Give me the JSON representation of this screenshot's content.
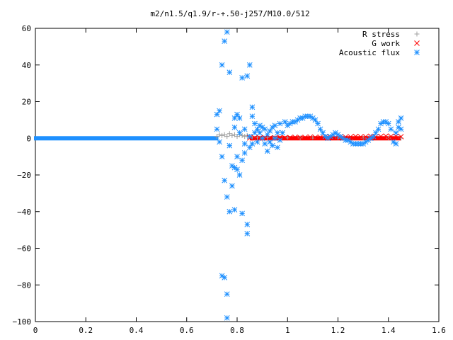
{
  "chart_data": {
    "type": "scatter",
    "title": "m2/n1.5/q1.9/r-+.50-j257/M10.0/512",
    "xlabel": "",
    "ylabel": "",
    "xlim": [
      0,
      1.6
    ],
    "ylim": [
      -100,
      60
    ],
    "x_ticks": [
      "0",
      "0.2",
      "0.4",
      "0.6",
      "0.8",
      "1",
      "1.2",
      "1.4",
      "1.6"
    ],
    "y_ticks": [
      "60",
      "40",
      "20",
      "0",
      "−20",
      "−40",
      "−60",
      "−80",
      "−100"
    ],
    "legend_position": "top-right",
    "grid": false,
    "series": [
      {
        "name": "R stress",
        "marker": "plus",
        "color": "#a0a0a0",
        "points": [
          [
            0.72,
            1
          ],
          [
            0.73,
            2
          ],
          [
            0.74,
            1.5
          ],
          [
            0.75,
            2
          ],
          [
            0.76,
            1
          ],
          [
            0.77,
            2.5
          ],
          [
            0.78,
            1.5
          ],
          [
            0.79,
            2
          ],
          [
            0.8,
            1
          ],
          [
            0.81,
            2
          ],
          [
            0.82,
            1.5
          ],
          [
            0.83,
            1
          ],
          [
            0.84,
            1.5
          ],
          [
            0.85,
            1
          ],
          [
            0.86,
            0.8
          ],
          [
            0.88,
            0.6
          ],
          [
            0.9,
            0.5
          ],
          [
            0.92,
            0.4
          ],
          [
            0.95,
            0.3
          ],
          [
            1.0,
            0.2
          ],
          [
            1.05,
            0.2
          ],
          [
            1.1,
            0.1
          ],
          [
            1.2,
            0.1
          ],
          [
            1.3,
            0.1
          ],
          [
            1.4,
            0.1
          ],
          [
            1.45,
            0.1
          ]
        ]
      },
      {
        "name": "G work",
        "marker": "cross",
        "color": "#ff0000",
        "points": [
          [
            0.85,
            0.2
          ],
          [
            0.87,
            0.3
          ],
          [
            0.89,
            0.2
          ],
          [
            0.91,
            0.4
          ],
          [
            0.93,
            0.2
          ],
          [
            0.95,
            0.3
          ],
          [
            0.97,
            0.5
          ],
          [
            0.99,
            0.3
          ],
          [
            1.01,
            0.4
          ],
          [
            1.03,
            0.6
          ],
          [
            1.05,
            0.4
          ],
          [
            1.07,
            0.5
          ],
          [
            1.09,
            0.7
          ],
          [
            1.11,
            0.5
          ],
          [
            1.13,
            0.6
          ],
          [
            1.15,
            0.8
          ],
          [
            1.17,
            0.6
          ],
          [
            1.19,
            0.7
          ],
          [
            1.21,
            0.9
          ],
          [
            1.23,
            0.7
          ],
          [
            1.25,
            0.8
          ],
          [
            1.27,
            1.0
          ],
          [
            1.29,
            0.8
          ],
          [
            1.31,
            0.9
          ],
          [
            1.33,
            1.1
          ],
          [
            1.35,
            0.9
          ],
          [
            1.37,
            1.0
          ],
          [
            1.39,
            1.2
          ],
          [
            1.41,
            1.0
          ],
          [
            1.43,
            1.1
          ],
          [
            1.45,
            0.9
          ]
        ]
      },
      {
        "name": "Acoustic flux",
        "marker": "star",
        "color": "#1e90ff",
        "points": [
          [
            0.72,
            13
          ],
          [
            0.72,
            5
          ],
          [
            0.73,
            -2
          ],
          [
            0.73,
            15
          ],
          [
            0.74,
            40
          ],
          [
            0.74,
            -10
          ],
          [
            0.74,
            -75
          ],
          [
            0.75,
            -23
          ],
          [
            0.75,
            -76
          ],
          [
            0.75,
            53
          ],
          [
            0.76,
            58
          ],
          [
            0.76,
            -32
          ],
          [
            0.76,
            -85
          ],
          [
            0.76,
            -98
          ],
          [
            0.77,
            36
          ],
          [
            0.77,
            -4
          ],
          [
            0.77,
            -40
          ],
          [
            0.78,
            -15
          ],
          [
            0.78,
            -26
          ],
          [
            0.79,
            -16
          ],
          [
            0.79,
            -39
          ],
          [
            0.79,
            6
          ],
          [
            0.79,
            11
          ],
          [
            0.8,
            -17
          ],
          [
            0.8,
            -10
          ],
          [
            0.8,
            13
          ],
          [
            0.81,
            11
          ],
          [
            0.81,
            3
          ],
          [
            0.81,
            -20
          ],
          [
            0.82,
            33
          ],
          [
            0.82,
            -12
          ],
          [
            0.82,
            -41
          ],
          [
            0.83,
            -8
          ],
          [
            0.83,
            5
          ],
          [
            0.83,
            -3
          ],
          [
            0.84,
            -47
          ],
          [
            0.84,
            34
          ],
          [
            0.84,
            -52
          ],
          [
            0.85,
            40
          ],
          [
            0.85,
            -5
          ],
          [
            0.85,
            1
          ],
          [
            0.86,
            17
          ],
          [
            0.86,
            12
          ],
          [
            0.86,
            -3
          ],
          [
            0.87,
            8
          ],
          [
            0.87,
            3
          ],
          [
            0.88,
            5
          ],
          [
            0.88,
            -2
          ],
          [
            0.89,
            3
          ],
          [
            0.89,
            7
          ],
          [
            0.9,
            0
          ],
          [
            0.9,
            6
          ],
          [
            0.91,
            -3
          ],
          [
            0.91,
            5
          ],
          [
            0.92,
            2
          ],
          [
            0.92,
            -7
          ],
          [
            0.93,
            -2
          ],
          [
            0.93,
            4
          ],
          [
            0.94,
            6
          ],
          [
            0.94,
            -4
          ],
          [
            0.95,
            7
          ],
          [
            0.95,
            0
          ],
          [
            0.96,
            -5
          ],
          [
            0.96,
            3
          ],
          [
            0.97,
            8
          ],
          [
            0.97,
            -1
          ],
          [
            0.98,
            3
          ],
          [
            0.99,
            9
          ],
          [
            1.0,
            7
          ],
          [
            1.01,
            8
          ],
          [
            1.02,
            9
          ],
          [
            1.03,
            9
          ],
          [
            1.04,
            10
          ],
          [
            1.05,
            11
          ],
          [
            1.06,
            11
          ],
          [
            1.07,
            12
          ],
          [
            1.08,
            12
          ],
          [
            1.09,
            12
          ],
          [
            1.1,
            11
          ],
          [
            1.11,
            10
          ],
          [
            1.12,
            8
          ],
          [
            1.13,
            5
          ],
          [
            1.14,
            3
          ],
          [
            1.15,
            1
          ],
          [
            1.16,
            0
          ],
          [
            1.17,
            1
          ],
          [
            1.18,
            2
          ],
          [
            1.19,
            3
          ],
          [
            1.2,
            2
          ],
          [
            1.21,
            1
          ],
          [
            1.22,
            0
          ],
          [
            1.23,
            -1
          ],
          [
            1.24,
            -1
          ],
          [
            1.25,
            -2
          ],
          [
            1.26,
            -3
          ],
          [
            1.27,
            -3
          ],
          [
            1.28,
            -3
          ],
          [
            1.29,
            -3
          ],
          [
            1.3,
            -3
          ],
          [
            1.31,
            -2
          ],
          [
            1.32,
            -1
          ],
          [
            1.33,
            0
          ],
          [
            1.34,
            1
          ],
          [
            1.35,
            3
          ],
          [
            1.36,
            5
          ],
          [
            1.37,
            8
          ],
          [
            1.38,
            9
          ],
          [
            1.39,
            9
          ],
          [
            1.4,
            8
          ],
          [
            1.41,
            5
          ],
          [
            1.42,
            -2
          ],
          [
            1.43,
            -3
          ],
          [
            1.43,
            3
          ],
          [
            1.44,
            6
          ],
          [
            1.44,
            9
          ],
          [
            1.45,
            11
          ],
          [
            1.45,
            5
          ]
        ]
      }
    ]
  }
}
